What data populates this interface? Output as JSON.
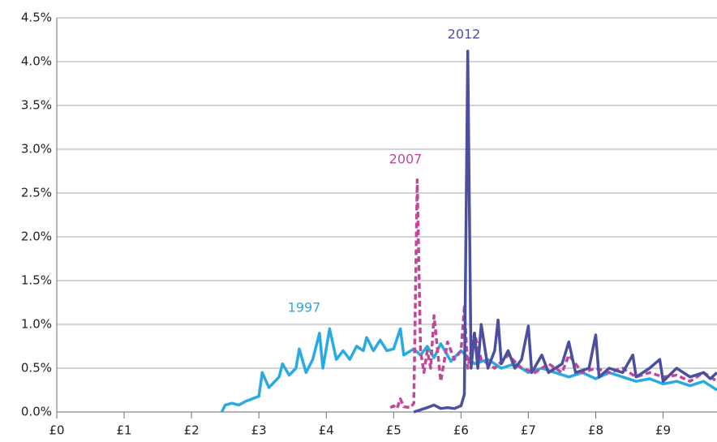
{
  "chart_data": {
    "type": "line",
    "xlim": [
      0,
      9.8
    ],
    "ylim": [
      0,
      4.5
    ],
    "xticks": [
      {
        "value": 0,
        "label": "£0"
      },
      {
        "value": 1,
        "label": "£1"
      },
      {
        "value": 2,
        "label": "£2"
      },
      {
        "value": 3,
        "label": "£3"
      },
      {
        "value": 4,
        "label": "£4"
      },
      {
        "value": 5,
        "label": "£5"
      },
      {
        "value": 6,
        "label": "£6"
      },
      {
        "value": 7,
        "label": "£7"
      },
      {
        "value": 8,
        "label": "£8"
      },
      {
        "value": 9,
        "label": "£9"
      }
    ],
    "yticks": [
      {
        "value": 0,
        "label": "0.0%"
      },
      {
        "value": 0.5,
        "label": "0.5%"
      },
      {
        "value": 1,
        "label": "1.0%"
      },
      {
        "value": 1.5,
        "label": "1.5%"
      },
      {
        "value": 2,
        "label": "2.0%"
      },
      {
        "value": 2.5,
        "label": "2.5%"
      },
      {
        "value": 3,
        "label": "3.0%"
      },
      {
        "value": 3.5,
        "label": "3.5%"
      },
      {
        "value": 4,
        "label": "4.0%"
      },
      {
        "value": 4.5,
        "label": "4.5%"
      }
    ],
    "grid": true,
    "series": [
      {
        "name": "1997",
        "color": "#29abe2",
        "dashed": false,
        "x": [
          2.45,
          2.5,
          2.6,
          2.7,
          2.8,
          2.9,
          3.0,
          3.05,
          3.15,
          3.3,
          3.35,
          3.45,
          3.55,
          3.6,
          3.7,
          3.8,
          3.9,
          3.95,
          4.05,
          4.15,
          4.25,
          4.35,
          4.45,
          4.55,
          4.6,
          4.7,
          4.8,
          4.9,
          5.0,
          5.1,
          5.15,
          5.3,
          5.4,
          5.5,
          5.6,
          5.7,
          5.85,
          6.0,
          6.2,
          6.4,
          6.6,
          6.8,
          7.0,
          7.2,
          7.4,
          7.6,
          7.8,
          8.0,
          8.2,
          8.4,
          8.6,
          8.8,
          9.0,
          9.2,
          9.4,
          9.6,
          9.8
        ],
        "values": [
          0,
          0.08,
          0.1,
          0.08,
          0.12,
          0.15,
          0.18,
          0.45,
          0.28,
          0.4,
          0.55,
          0.42,
          0.5,
          0.72,
          0.45,
          0.6,
          0.9,
          0.5,
          0.95,
          0.6,
          0.7,
          0.6,
          0.75,
          0.7,
          0.85,
          0.7,
          0.82,
          0.7,
          0.72,
          0.95,
          0.65,
          0.72,
          0.65,
          0.75,
          0.62,
          0.78,
          0.58,
          0.7,
          0.55,
          0.6,
          0.5,
          0.55,
          0.45,
          0.5,
          0.45,
          0.4,
          0.45,
          0.38,
          0.45,
          0.4,
          0.35,
          0.38,
          0.32,
          0.35,
          0.3,
          0.35,
          0.25
        ]
      },
      {
        "name": "2007",
        "color": "#c0479a",
        "dashed": true,
        "x": [
          4.95,
          5.0,
          5.05,
          5.1,
          5.15,
          5.25,
          5.3,
          5.35,
          5.4,
          5.45,
          5.5,
          5.55,
          5.6,
          5.7,
          5.8,
          5.9,
          6.0,
          6.05,
          6.1,
          6.2,
          6.3,
          6.5,
          6.7,
          6.9,
          7.1,
          7.3,
          7.5,
          7.6,
          7.8,
          8.0,
          8.2,
          8.4,
          8.6,
          8.8,
          9.0,
          9.2,
          9.4,
          9.6,
          9.8
        ],
        "values": [
          0.05,
          0.07,
          0.04,
          0.15,
          0.06,
          0.05,
          0.1,
          2.65,
          0.7,
          0.45,
          0.7,
          0.5,
          1.1,
          0.35,
          0.8,
          0.6,
          0.7,
          1.2,
          0.5,
          0.9,
          0.6,
          0.5,
          0.65,
          0.5,
          0.45,
          0.55,
          0.45,
          0.65,
          0.45,
          0.5,
          0.45,
          0.5,
          0.4,
          0.45,
          0.4,
          0.42,
          0.35,
          0.45,
          0.35
        ]
      },
      {
        "name": "2012",
        "color": "#4c4f9f",
        "dashed": false,
        "x": [
          5.3,
          5.5,
          5.6,
          5.7,
          5.8,
          5.9,
          6.0,
          6.05,
          6.1,
          6.15,
          6.2,
          6.25,
          6.3,
          6.4,
          6.5,
          6.55,
          6.6,
          6.7,
          6.8,
          6.9,
          7.0,
          7.05,
          7.2,
          7.3,
          7.5,
          7.6,
          7.7,
          7.9,
          8.0,
          8.05,
          8.2,
          8.4,
          8.55,
          8.6,
          8.8,
          8.95,
          9.0,
          9.2,
          9.4,
          9.6,
          9.7,
          9.8
        ],
        "values": [
          0,
          0.05,
          0.08,
          0.04,
          0.05,
          0.04,
          0.07,
          0.2,
          4.12,
          0.5,
          0.9,
          0.5,
          1.0,
          0.5,
          0.7,
          1.05,
          0.55,
          0.7,
          0.5,
          0.6,
          0.98,
          0.45,
          0.65,
          0.45,
          0.55,
          0.8,
          0.45,
          0.5,
          0.88,
          0.4,
          0.5,
          0.45,
          0.65,
          0.4,
          0.5,
          0.6,
          0.35,
          0.5,
          0.4,
          0.45,
          0.38,
          0.45
        ]
      }
    ]
  }
}
